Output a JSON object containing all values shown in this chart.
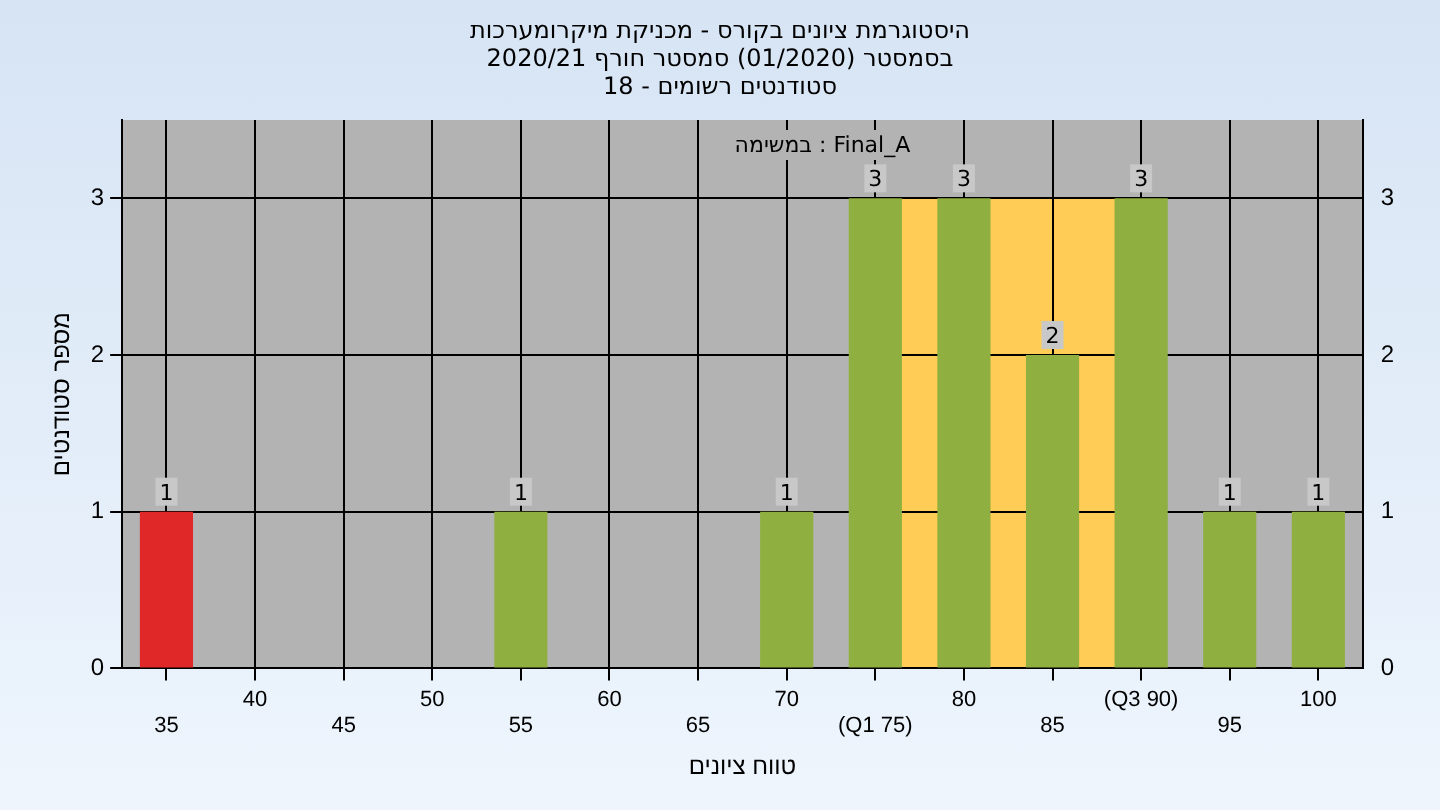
{
  "chart_data": {
    "type": "bar",
    "title": "היסטוגרמת ציונים בקורס - מכניקת מיקרומערכות",
    "subtitle": "בסמסטר  (01/2020)  סמסטר חורף 2020/21\nסטודנטים רשומים - 18",
    "xlabel": "טווח ציונים",
    "ylabel": "מספר סטודנטים",
    "annotations": [
      "במשימה : Final_A"
    ],
    "categories": [
      "35",
      "40",
      "45",
      "50",
      "55",
      "60",
      "65",
      "70",
      "(Q1 75)",
      "80",
      "85",
      "(Q3 90)",
      "95",
      "100"
    ],
    "values": [
      1,
      0,
      0,
      0,
      1,
      0,
      0,
      1,
      3,
      3,
      2,
      3,
      1,
      1
    ],
    "colors": [
      "#e02828",
      "#8fb040",
      "#8fb040",
      "#8fb040",
      "#8fb040",
      "#8fb040",
      "#8fb040",
      "#8fb040",
      "#8fb040",
      "#8fb040",
      "#8fb040",
      "#8fb040",
      "#8fb040",
      "#8fb040"
    ],
    "value_labels": [
      "1",
      null,
      null,
      null,
      "1",
      null,
      null,
      "1",
      "3",
      "3",
      "2",
      "3",
      "1",
      "1"
    ],
    "bands": [
      {
        "axis": "x",
        "from": "(Q1 75)",
        "to": "(Q3 90)",
        "color": "#ffcc55"
      }
    ],
    "ylim": [
      0,
      3.5
    ],
    "yticks": [
      0,
      1,
      2,
      3
    ],
    "y2lim": [
      0,
      3.5
    ],
    "y2ticks": [
      0,
      1,
      2,
      3
    ],
    "grid": true,
    "legend": false
  }
}
